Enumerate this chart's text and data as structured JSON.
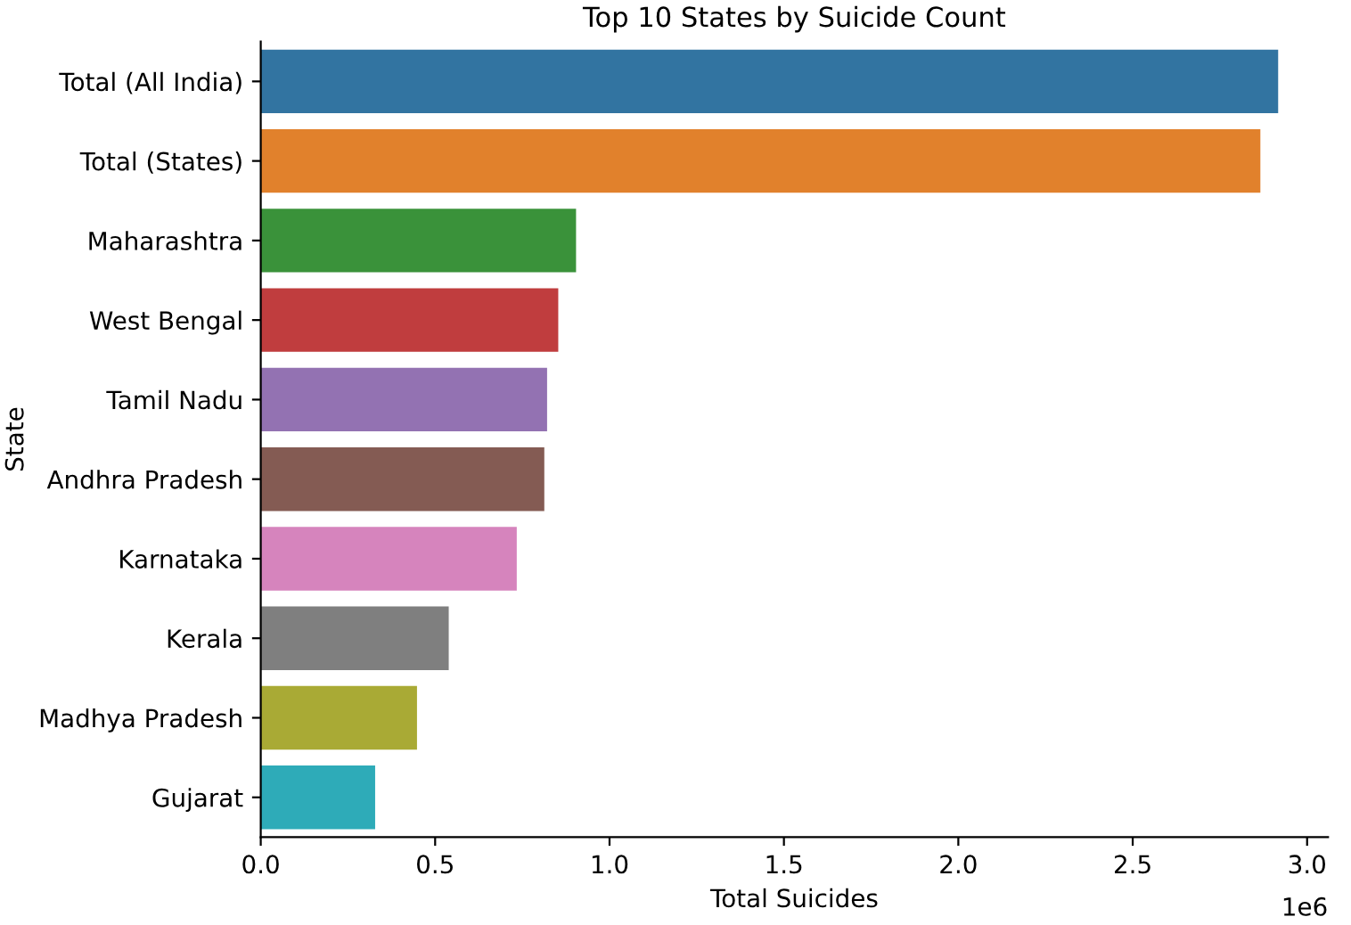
{
  "chart_data": {
    "type": "bar",
    "orientation": "horizontal",
    "title": "Top 10 States by Suicide Count",
    "xlabel": "Total Suicides",
    "ylabel": "State",
    "categories": [
      "Total (All India)",
      "Total (States)",
      "Maharashtra",
      "West Bengal",
      "Tamil Nadu",
      "Andhra Pradesh",
      "Karnataka",
      "Kerala",
      "Madhya Pradesh",
      "Gujarat"
    ],
    "values": [
      2.917,
      2.866,
      0.904,
      0.853,
      0.821,
      0.813,
      0.734,
      0.539,
      0.448,
      0.328
    ],
    "colors": [
      "#3274a1",
      "#e1812c",
      "#3a923a",
      "#c03d3e",
      "#9372b2",
      "#845b53",
      "#d684bd",
      "#7f7f7f",
      "#a9aa35",
      "#2eabb8"
    ],
    "xlim": [
      0,
      3.06
    ],
    "xticks": [
      {
        "value": 0,
        "label": "0.0"
      },
      0.5,
      {
        "value": 1,
        "label": "1.0"
      },
      1.5,
      {
        "value": 2,
        "label": "2.0"
      },
      2.5,
      {
        "value": 3,
        "label": "3.0"
      }
    ],
    "annotations": [
      "1e6"
    ],
    "grid": false,
    "legend": false
  }
}
